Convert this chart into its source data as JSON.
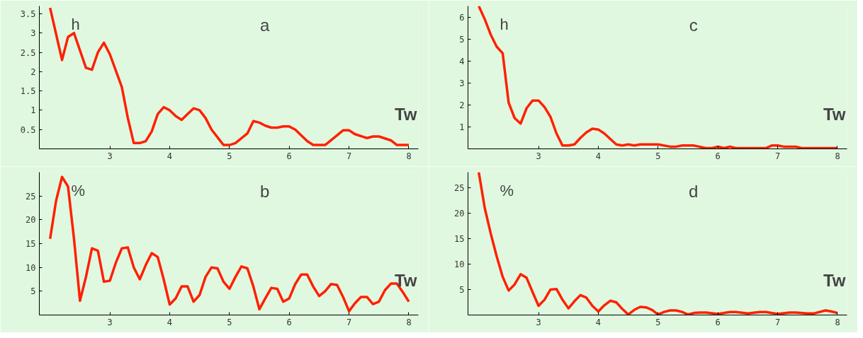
{
  "chart_data": [
    {
      "type": "line",
      "title": "a",
      "ylabel": "h",
      "xlabel": "Tw",
      "xlim": [
        1.82,
        8.16
      ],
      "ylim": [
        0,
        3.7
      ],
      "xticks": [
        3,
        4,
        5,
        6,
        7,
        8
      ],
      "yticks": [
        0.5,
        1,
        1.5,
        2,
        2.5,
        3,
        3.5
      ],
      "grid": false,
      "marker": "none",
      "line_style": "solid",
      "series": [
        {
          "color": "#ff2000",
          "x": [
            2,
            2.2,
            2.3,
            2.4,
            2.6,
            2.7,
            2.8,
            2.9,
            3.0,
            3.2,
            3.3,
            3.4,
            3.5,
            3.6,
            3.7,
            3.8,
            3.9,
            4.0,
            4.1,
            4.2,
            4.3,
            4.4,
            4.5,
            4.6,
            4.7,
            4.8,
            4.9,
            5.0,
            5.1,
            5.3,
            5.4,
            5.5,
            5.6,
            5.7,
            5.8,
            5.9,
            6.0,
            6.1,
            6.3,
            6.4,
            6.6,
            6.8,
            6.9,
            7.0,
            7.1,
            7.3,
            7.4,
            7.5,
            7.7,
            7.8,
            8.0
          ],
          "values": [
            3.65,
            2.3,
            2.9,
            3.0,
            2.1,
            2.05,
            2.5,
            2.75,
            2.45,
            1.6,
            0.8,
            0.15,
            0.15,
            0.2,
            0.45,
            0.9,
            1.08,
            1.0,
            0.85,
            0.75,
            0.9,
            1.05,
            1.0,
            0.8,
            0.5,
            0.3,
            0.1,
            0.1,
            0.15,
            0.4,
            0.72,
            0.68,
            0.6,
            0.55,
            0.55,
            0.58,
            0.58,
            0.5,
            0.2,
            0.1,
            0.1,
            0.35,
            0.48,
            0.48,
            0.38,
            0.28,
            0.32,
            0.32,
            0.22,
            0.1,
            0.1
          ]
        }
      ]
    },
    {
      "type": "line",
      "title": "c",
      "ylabel": "h",
      "xlabel": "Tw",
      "xlim": [
        1.82,
        8.16
      ],
      "ylim": [
        0,
        6.5
      ],
      "xticks": [
        3,
        4,
        5,
        6,
        7,
        8
      ],
      "yticks": [
        1,
        2,
        3,
        4,
        5,
        6
      ],
      "grid": false,
      "marker": "none",
      "line_style": "solid",
      "series": [
        {
          "color": "#ff2000",
          "x": [
            2,
            2.1,
            2.2,
            2.3,
            2.4,
            2.5,
            2.6,
            2.7,
            2.8,
            2.9,
            3.0,
            3.1,
            3.2,
            3.3,
            3.4,
            3.5,
            3.6,
            3.7,
            3.8,
            3.9,
            4.0,
            4.1,
            4.2,
            4.3,
            4.4,
            4.5,
            4.6,
            4.7,
            5.0,
            5.2,
            5.3,
            5.4,
            5.6,
            5.8,
            5.9,
            6.0,
            6.1,
            6.2,
            6.3,
            6.8,
            6.9,
            7.0,
            7.1,
            7.3,
            7.4,
            8.0
          ],
          "values": [
            6.5,
            5.9,
            5.2,
            4.65,
            4.35,
            2.1,
            1.4,
            1.15,
            1.85,
            2.2,
            2.2,
            1.9,
            1.45,
            0.7,
            0.15,
            0.15,
            0.2,
            0.5,
            0.75,
            0.92,
            0.88,
            0.7,
            0.45,
            0.2,
            0.15,
            0.2,
            0.15,
            0.2,
            0.2,
            0.1,
            0.1,
            0.15,
            0.15,
            0.03,
            0.03,
            0.1,
            0.03,
            0.1,
            0.03,
            0.03,
            0.15,
            0.15,
            0.1,
            0.1,
            0.03,
            0.03
          ]
        }
      ]
    },
    {
      "type": "line",
      "title": "b",
      "ylabel": "%",
      "xlabel": "Tw",
      "xlim": [
        1.82,
        8.16
      ],
      "ylim": [
        0,
        30
      ],
      "xticks": [
        3,
        4,
        5,
        6,
        7,
        8
      ],
      "yticks": [
        5,
        10,
        15,
        20,
        25
      ],
      "grid": false,
      "marker": "none",
      "line_style": "solid",
      "series": [
        {
          "color": "#ff2000",
          "x": [
            2,
            2.1,
            2.2,
            2.3,
            2.4,
            2.5,
            2.6,
            2.7,
            2.8,
            2.9,
            3.0,
            3.1,
            3.2,
            3.3,
            3.4,
            3.5,
            3.6,
            3.7,
            3.8,
            3.9,
            4.0,
            4.1,
            4.2,
            4.3,
            4.4,
            4.5,
            4.6,
            4.7,
            4.8,
            4.9,
            5.0,
            5.1,
            5.2,
            5.3,
            5.4,
            5.5,
            5.6,
            5.7,
            5.8,
            5.9,
            6.0,
            6.1,
            6.2,
            6.3,
            6.4,
            6.5,
            6.6,
            6.7,
            6.8,
            6.9,
            7.0,
            7.1,
            7.2,
            7.3,
            7.4,
            7.5,
            7.6,
            7.7,
            7.8,
            7.9,
            8.0
          ],
          "values": [
            16,
            24,
            29,
            27,
            16,
            3,
            8,
            14,
            13.5,
            7,
            7.2,
            11,
            14,
            14.2,
            10,
            7.5,
            10.5,
            13,
            12.2,
            7.5,
            2.2,
            3.5,
            6,
            6,
            2.8,
            4.2,
            8,
            10,
            9.8,
            7,
            5.5,
            8,
            10.2,
            9.8,
            6,
            1.2,
            3.5,
            5.7,
            5.5,
            2.8,
            3.5,
            6.5,
            8.5,
            8.5,
            6,
            4,
            5,
            6.5,
            6.3,
            3.8,
            0.8,
            2.5,
            3.8,
            3.8,
            2.3,
            2.8,
            5.2,
            6.6,
            6.6,
            4.8,
            2.8
          ]
        }
      ]
    },
    {
      "type": "line",
      "title": "d",
      "ylabel": "%",
      "xlabel": "Tw",
      "xlim": [
        1.82,
        8.16
      ],
      "ylim": [
        0,
        28
      ],
      "xticks": [
        3,
        4,
        5,
        6,
        7,
        8
      ],
      "yticks": [
        5,
        10,
        15,
        20,
        25
      ],
      "grid": false,
      "marker": "none",
      "line_style": "solid",
      "series": [
        {
          "color": "#ff2000",
          "x": [
            2,
            2.1,
            2.2,
            2.3,
            2.4,
            2.5,
            2.6,
            2.7,
            2.8,
            2.9,
            3.0,
            3.1,
            3.2,
            3.3,
            3.4,
            3.5,
            3.6,
            3.7,
            3.8,
            3.9,
            4.0,
            4.1,
            4.2,
            4.3,
            4.4,
            4.5,
            4.6,
            4.7,
            4.8,
            4.9,
            5.0,
            5.1,
            5.2,
            5.3,
            5.4,
            5.5,
            5.6,
            5.7,
            5.8,
            6.0,
            6.2,
            6.3,
            6.5,
            6.7,
            6.8,
            7.0,
            7.2,
            7.3,
            7.5,
            7.6,
            7.8,
            7.9,
            8.0
          ],
          "values": [
            28,
            21,
            16,
            11.5,
            7.5,
            4.8,
            6,
            8,
            7.3,
            4.5,
            1.8,
            3,
            5,
            5.1,
            3,
            1.3,
            2.7,
            3.9,
            3.4,
            1.8,
            0.7,
            1.9,
            2.8,
            2.5,
            1.2,
            0.1,
            1,
            1.6,
            1.5,
            1,
            0.1,
            0.6,
            0.9,
            0.9,
            0.6,
            0.1,
            0.4,
            0.5,
            0.5,
            0.2,
            0.6,
            0.6,
            0.3,
            0.6,
            0.6,
            0.2,
            0.5,
            0.5,
            0.3,
            0.3,
            0.9,
            0.7,
            0.4
          ]
        }
      ]
    }
  ]
}
